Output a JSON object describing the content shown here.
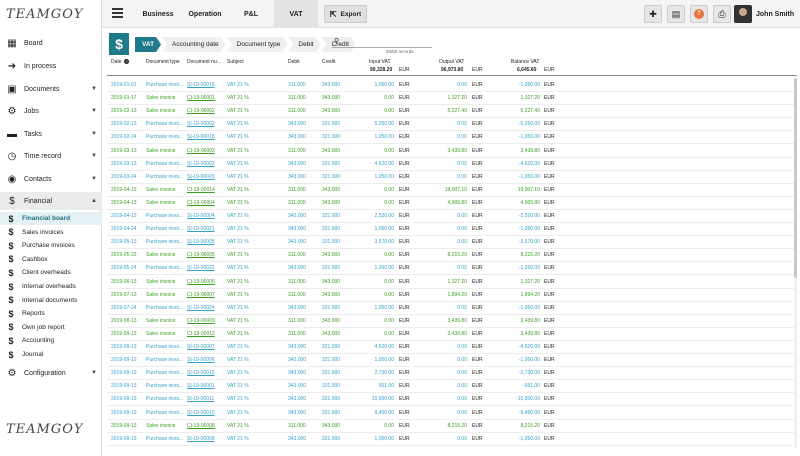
{
  "app": {
    "logo": "TEAMGOY"
  },
  "sidebar": {
    "items": [
      {
        "label": "Board",
        "icon": "grid-icon",
        "chev": false
      },
      {
        "label": "In process",
        "icon": "arrow-right-icon",
        "chev": false
      },
      {
        "label": "Documents",
        "icon": "documents-icon",
        "chev": true
      },
      {
        "label": "Jobs",
        "icon": "gear-icon",
        "chev": true
      },
      {
        "label": "Tasks",
        "icon": "tasks-icon",
        "chev": true
      },
      {
        "label": "Time record",
        "icon": "clock-icon",
        "chev": true
      },
      {
        "label": "Contacts",
        "icon": "contacts-icon",
        "chev": true
      },
      {
        "label": "Financial",
        "icon": "dollar-icon",
        "chev": true
      },
      {
        "label": "Configuration",
        "icon": "settings-icon",
        "chev": true
      }
    ],
    "financial_sub": [
      "Financial board",
      "Sales invoices",
      "Purchase invoices",
      "Cashbox",
      "Client overheads",
      "Internal overheads",
      "Internal documents",
      "Reports",
      "Own job report",
      "Accounting",
      "Journal"
    ]
  },
  "topbar": {
    "tabs": [
      "Business",
      "Operation",
      "P&L",
      "VAT"
    ],
    "active_tab": "VAT",
    "export_label": "Export",
    "user_name": "John Smith"
  },
  "filter": {
    "crumbs": [
      "VAT",
      "Accounting date",
      "Document type",
      "Debit",
      "Credit"
    ],
    "records": "50/50 records"
  },
  "table": {
    "headers": {
      "date": "Date",
      "doctype": "Document type",
      "docnum": "Document nu...",
      "subject": "Subject",
      "debit": "Debit",
      "credit": "Credit",
      "input_vat": "Input VAT",
      "input_vat_total": "90,328.20",
      "output_vat": "Output VAT",
      "output_vat_total": "96,973.80",
      "balance_vat": "Balance VAT",
      "balance_vat_total": "6,645.60",
      "currency": "EUR"
    },
    "rows": [
      {
        "date": "2019-01-01",
        "type": "purchase",
        "doctype": "Purchase invoi...",
        "doc": "SI-19-00016",
        "subject": "VAT 21 %",
        "debit": "311.000",
        "credit": "343.000",
        "in": "1,050.00",
        "out": "0.00",
        "bal": "-1,050.00"
      },
      {
        "date": "2019-01-17",
        "type": "sales",
        "doctype": "Sales invoice",
        "doc": "CI-19-00001",
        "subject": "VAT 21 %",
        "debit": "311.000",
        "credit": "343.000",
        "in": "0.00",
        "out": "1,327.20",
        "bal": "1,327.20"
      },
      {
        "date": "2019-02-13",
        "type": "sales",
        "doctype": "Sales invoice",
        "doc": "CI-19-00002",
        "subject": "VAT 21 %",
        "debit": "311.000",
        "credit": "343.000",
        "in": "0.00",
        "out": "5,227.40",
        "bal": "5,227.40"
      },
      {
        "date": "2019-02-13",
        "type": "purchase",
        "doctype": "Purchase invoi...",
        "doc": "SI-19-00002",
        "subject": "VAT 21 %",
        "debit": "343.000",
        "credit": "321.000",
        "in": "5,250.00",
        "out": "0.00",
        "bal": "-5,250.00"
      },
      {
        "date": "2019-02-24",
        "type": "purchase",
        "doctype": "Purchase invoi...",
        "doc": "SI-19-00018",
        "subject": "VAT 21 %",
        "debit": "343.000",
        "credit": "321.000",
        "in": "1,050.00",
        "out": "0.00",
        "bal": "-1,050.00"
      },
      {
        "date": "2019-03-13",
        "type": "sales",
        "doctype": "Sales invoice",
        "doc": "CI-19-00003",
        "subject": "VAT 21 %",
        "debit": "311.000",
        "credit": "343.000",
        "in": "0.00",
        "out": "3,439.80",
        "bal": "3,439.80"
      },
      {
        "date": "2019-03-13",
        "type": "purchase",
        "doctype": "Purchase invoi...",
        "doc": "SI-19-00003",
        "subject": "VAT 21 %",
        "debit": "343.000",
        "credit": "321.000",
        "in": "4,620.00",
        "out": "0.00",
        "bal": "-4,620.00"
      },
      {
        "date": "2019-03-24",
        "type": "purchase",
        "doctype": "Purchase invoi...",
        "doc": "SI-19-00020",
        "subject": "VAT 21 %",
        "debit": "343.000",
        "credit": "321.000",
        "in": "1,050.00",
        "out": "0.00",
        "bal": "-1,050.00"
      },
      {
        "date": "2019-04-13",
        "type": "sales",
        "doctype": "Sales invoice",
        "doc": "CI-19-00014",
        "subject": "VAT 21 %",
        "debit": "311.000",
        "credit": "343.000",
        "in": "0.00",
        "out": "19,007.10",
        "bal": "19,007.10"
      },
      {
        "date": "2019-04-13",
        "type": "sales",
        "doctype": "Sales invoice",
        "doc": "CI-19-00004",
        "subject": "VAT 21 %",
        "debit": "311.000",
        "credit": "343.000",
        "in": "0.00",
        "out": "4,909.80",
        "bal": "4,909.80"
      },
      {
        "date": "2019-04-13",
        "type": "purchase",
        "doctype": "Purchase invoi...",
        "doc": "SI-19-00004",
        "subject": "VAT 21 %",
        "debit": "343.000",
        "credit": "321.000",
        "in": "2,520.00",
        "out": "0.00",
        "bal": "-2,520.00"
      },
      {
        "date": "2019-04-24",
        "type": "purchase",
        "doctype": "Purchase invoi...",
        "doc": "SI-19-00021",
        "subject": "VAT 21 %",
        "debit": "343.000",
        "credit": "321.000",
        "in": "1,050.00",
        "out": "0.00",
        "bal": "-1,050.00"
      },
      {
        "date": "2019-05-13",
        "type": "purchase",
        "doctype": "Purchase invoi...",
        "doc": "SI-19-00005",
        "subject": "VAT 21 %",
        "debit": "343.000",
        "credit": "321.000",
        "in": "3,570.00",
        "out": "0.00",
        "bal": "-3,570.00"
      },
      {
        "date": "2019-05-22",
        "type": "sales",
        "doctype": "Sales invoice",
        "doc": "CI-19-00005",
        "subject": "VAT 21 %",
        "debit": "311.000",
        "credit": "343.000",
        "in": "0.00",
        "out": "8,215.20",
        "bal": "8,215.20"
      },
      {
        "date": "2019-05-24",
        "type": "purchase",
        "doctype": "Purchase invoi...",
        "doc": "SI-19-00022",
        "subject": "VAT 21 %",
        "debit": "343.000",
        "credit": "321.000",
        "in": "1,260.00",
        "out": "0.00",
        "bal": "-1,260.00"
      },
      {
        "date": "2019-06-13",
        "type": "sales",
        "doctype": "Sales invoice",
        "doc": "CI-19-00006",
        "subject": "VAT 21 %",
        "debit": "311.000",
        "credit": "343.000",
        "in": "0.00",
        "out": "1,327.20",
        "bal": "1,327.20"
      },
      {
        "date": "2019-07-13",
        "type": "sales",
        "doctype": "Sales invoice",
        "doc": "CI-19-00007",
        "subject": "VAT 21 %",
        "debit": "311.000",
        "credit": "343.000",
        "in": "0.00",
        "out": "1,894.20",
        "bal": "1,894.20"
      },
      {
        "date": "2019-07-24",
        "type": "purchase",
        "doctype": "Purchase invoi...",
        "doc": "SI-19-00024",
        "subject": "VAT 21 %",
        "debit": "343.000",
        "credit": "321.000",
        "in": "1,050.00",
        "out": "0.00",
        "bal": "-1,050.00"
      },
      {
        "date": "2019-08-13",
        "type": "sales",
        "doctype": "Sales invoice",
        "doc": "CI-19-00009",
        "subject": "VAT 21 %",
        "debit": "311.000",
        "credit": "343.000",
        "in": "0.00",
        "out": "3,439.80",
        "bal": "3,439.80"
      },
      {
        "date": "2019-09-13",
        "type": "sales",
        "doctype": "Sales invoice",
        "doc": "CI-19-00012",
        "subject": "VAT 21 %",
        "debit": "311.000",
        "credit": "343.000",
        "in": "0.00",
        "out": "3,439.80",
        "bal": "3,439.80"
      },
      {
        "date": "2019-09-13",
        "type": "purchase",
        "doctype": "Purchase invoi...",
        "doc": "SI-19-00007",
        "subject": "VAT 21 %",
        "debit": "343.000",
        "credit": "321.000",
        "in": "4,620.00",
        "out": "0.00",
        "bal": "-4,620.00"
      },
      {
        "date": "2019-09-13",
        "type": "purchase",
        "doctype": "Purchase invoi...",
        "doc": "SI-19-00006",
        "subject": "VAT 21 %",
        "debit": "343.000",
        "credit": "321.000",
        "in": "1,050.00",
        "out": "0.00",
        "bal": "-1,050.00"
      },
      {
        "date": "2019-09-13",
        "type": "purchase",
        "doctype": "Purchase invoi...",
        "doc": "SI-19-00013",
        "subject": "VAT 21 %",
        "debit": "343.000",
        "credit": "321.000",
        "in": "2,730.00",
        "out": "0.00",
        "bal": "-2,730.00"
      },
      {
        "date": "2019-09-13",
        "type": "purchase",
        "doctype": "Purchase invoi...",
        "doc": "SI-19-00001",
        "subject": "VAT 21 %",
        "debit": "343.000",
        "credit": "321.000",
        "in": "651.00",
        "out": "0.00",
        "bal": "-651.00"
      },
      {
        "date": "2019-09-13",
        "type": "purchase",
        "doctype": "Purchase invoi...",
        "doc": "SI-19-00011",
        "subject": "VAT 21 %",
        "debit": "343.000",
        "credit": "321.000",
        "in": "10,500.00",
        "out": "0.00",
        "bal": "-10,500.00"
      },
      {
        "date": "2019-09-13",
        "type": "purchase",
        "doctype": "Purchase invoi...",
        "doc": "SI-19-00010",
        "subject": "VAT 21 %",
        "debit": "343.000",
        "credit": "321.000",
        "in": "9,450.00",
        "out": "0.00",
        "bal": "-9,450.00"
      },
      {
        "date": "2019-09-13",
        "type": "sales",
        "doctype": "Sales invoice",
        "doc": "CI-19-00008",
        "subject": "VAT 21 %",
        "debit": "311.000",
        "credit": "343.000",
        "in": "0.00",
        "out": "8,215.20",
        "bal": "8,215.20"
      },
      {
        "date": "2019-09-13",
        "type": "purchase",
        "doctype": "Purchase invoi...",
        "doc": "SI-19-00009",
        "subject": "VAT 21 %",
        "debit": "343.000",
        "credit": "321.000",
        "in": "1,050.00",
        "out": "0.00",
        "bal": "-1,050.00"
      }
    ]
  },
  "colors": {
    "accent": "#1f7a8c",
    "purchase": "#35a0c9",
    "sales": "#3a9d23"
  }
}
